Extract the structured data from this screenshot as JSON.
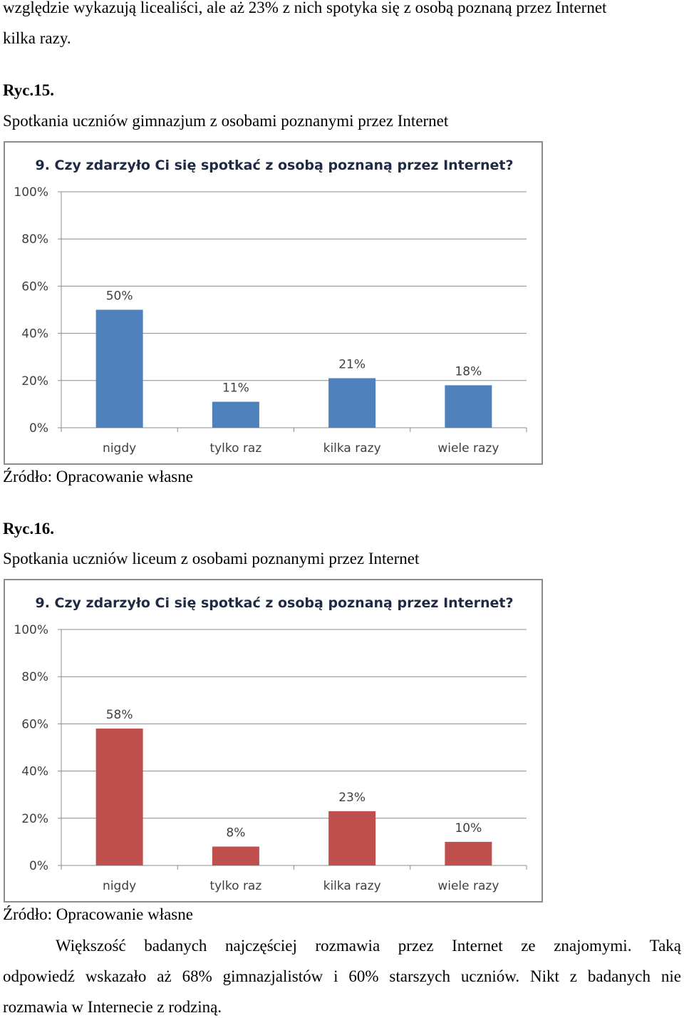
{
  "intro": {
    "line1": "względzie wykazują licealiści, ale aż 23% z nich spotyka się z osobą poznaną przez Internet",
    "line2": "kilka razy."
  },
  "figure15": {
    "label": "Ryc.15.",
    "caption": "Spotkania uczniów gimnazjum z osobami poznanymi przez Internet",
    "source": "Źródło: Opracowanie własne"
  },
  "figure16": {
    "label": "Ryc.16.",
    "caption": "Spotkania uczniów liceum z osobami poznanymi przez Internet",
    "source": "Źródło: Opracowanie własne"
  },
  "conclusion": {
    "line1": "Większość badanych najczęściej rozmawia przez Internet ze znajomymi. Taką",
    "line2": "odpowiedź wskazało aż 68% gimnazjalistów i 60% starszych uczniów. Nikt z badanych nie",
    "line3": "rozmawia w Internecie z rodziną."
  },
  "chart_data": [
    {
      "type": "bar",
      "title": "9. Czy zdarzyło Ci się spotkać z osobą poznaną przez Internet?",
      "categories": [
        "nigdy",
        "tylko raz",
        "kilka razy",
        "wiele razy"
      ],
      "values": [
        50,
        11,
        21,
        18
      ],
      "data_labels": [
        "50%",
        "11%",
        "21%",
        "18%"
      ],
      "ylim": [
        0,
        100
      ],
      "yticks": [
        "0%",
        "20%",
        "40%",
        "60%",
        "80%",
        "100%"
      ],
      "grid": true,
      "color": "#4f81bd"
    },
    {
      "type": "bar",
      "title": "9. Czy zdarzyło Ci się spotkać z osobą poznaną przez Internet?",
      "categories": [
        "nigdy",
        "tylko raz",
        "kilka razy",
        "wiele razy"
      ],
      "values": [
        58,
        8,
        23,
        10
      ],
      "data_labels": [
        "58%",
        "8%",
        "23%",
        "10%"
      ],
      "ylim": [
        0,
        100
      ],
      "yticks": [
        "0%",
        "20%",
        "40%",
        "60%",
        "80%",
        "100%"
      ],
      "grid": true,
      "color": "#c0504d"
    }
  ]
}
